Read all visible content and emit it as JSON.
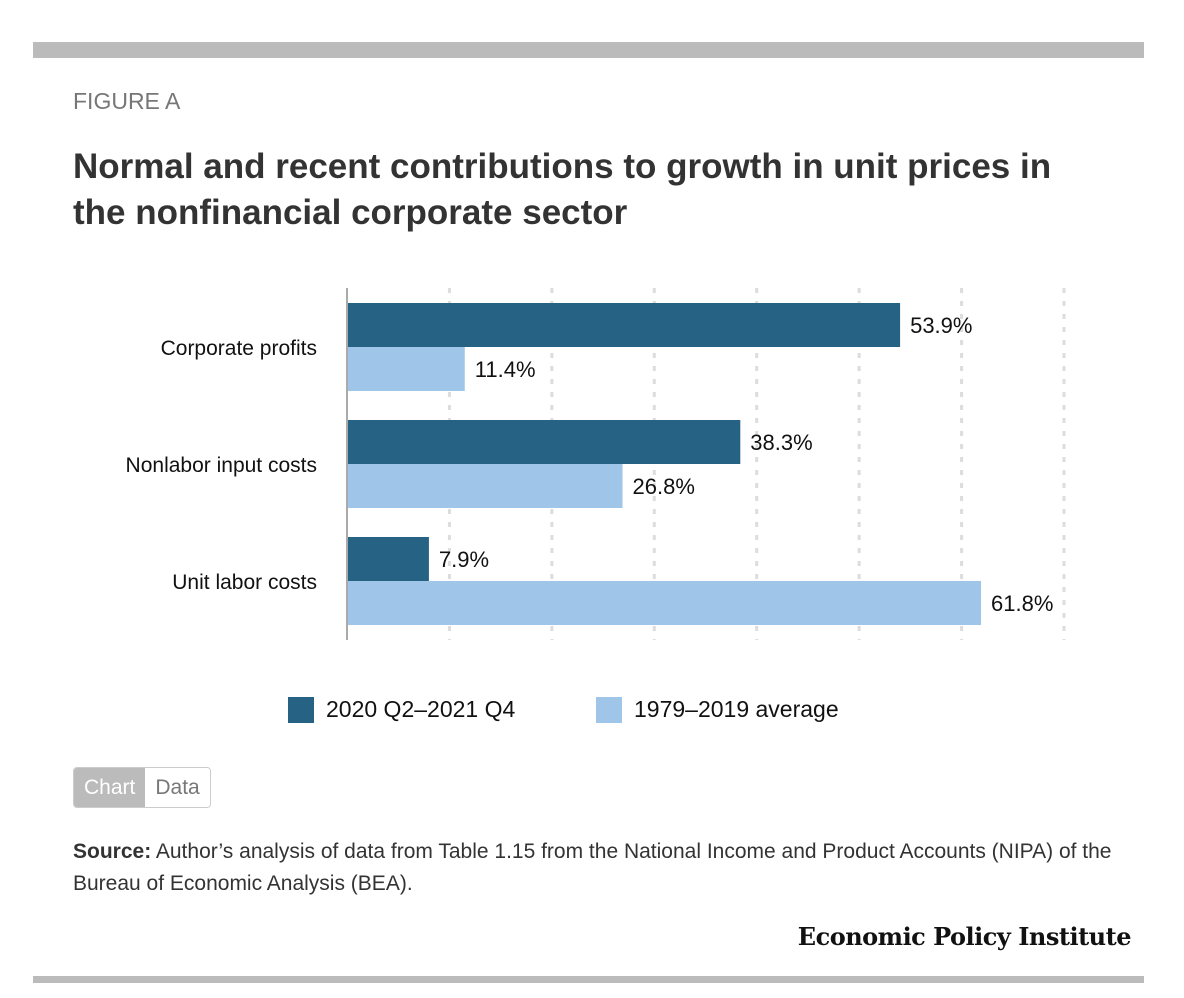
{
  "figure_label": "FIGURE A",
  "title": "Normal and recent contributions to growth in unit prices in the nonfinancial corporate sector",
  "chart_data": {
    "type": "bar",
    "orientation": "horizontal",
    "categories": [
      "Corporate profits",
      "Nonlabor input costs",
      "Unit labor costs"
    ],
    "series": [
      {
        "name": "2020 Q2–2021 Q4",
        "color": "#266283",
        "values": [
          53.9,
          38.3,
          7.9
        ],
        "labels": [
          "53.9%",
          "38.3%",
          "7.9%"
        ]
      },
      {
        "name": "1979–2019 average",
        "color": "#9fc6e8",
        "values": [
          11.4,
          26.8,
          61.8
        ],
        "labels": [
          "11.4%",
          "26.8%",
          "61.8%"
        ]
      }
    ],
    "xlim": [
      0,
      70
    ],
    "grid": true,
    "legend": "bottom"
  },
  "toggle": {
    "chart": "Chart",
    "data": "Data"
  },
  "source": {
    "label": "Source:",
    "text": " Author’s analysis of data from Table 1.15 from the National Income and Product Accounts (NIPA) of the Bureau of Economic Analysis (BEA)."
  },
  "brand": "Economic Policy Institute"
}
